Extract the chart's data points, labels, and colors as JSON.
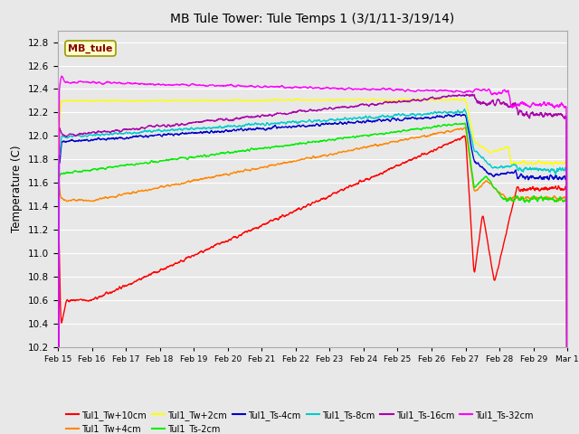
{
  "title": "MB Tule Tower: Tule Temps 1 (3/1/11-3/19/14)",
  "ylabel": "Temperature (C)",
  "ylim": [
    10.2,
    12.9
  ],
  "bg_color": "#e8e8e8",
  "grid_color": "#ffffff",
  "series_colors": {
    "Tul1_Tw+10cm": "#ff0000",
    "Tul1_Tw+4cm": "#ff8800",
    "Tul1_Tw+2cm": "#ffff00",
    "Tul1_Ts-2cm": "#00ee00",
    "Tul1_Ts-4cm": "#0000cc",
    "Tul1_Ts-8cm": "#00cccc",
    "Tul1_Ts-16cm": "#aa00aa",
    "Tul1_Ts-32cm": "#ff00ff"
  },
  "tick_labels": [
    "Feb 15",
    "Feb 16",
    "Feb 17",
    "Feb 18",
    "Feb 19",
    "Feb 20",
    "Feb 21",
    "Feb 22",
    "Feb 23",
    "Feb 24",
    "Feb 25",
    "Feb 26",
    "Feb 27",
    "Feb 28",
    "Feb 29",
    "Mar 1"
  ],
  "yticks": [
    10.2,
    10.4,
    10.6,
    10.8,
    11.0,
    11.2,
    11.4,
    11.6,
    11.8,
    12.0,
    12.2,
    12.4,
    12.6,
    12.8
  ]
}
